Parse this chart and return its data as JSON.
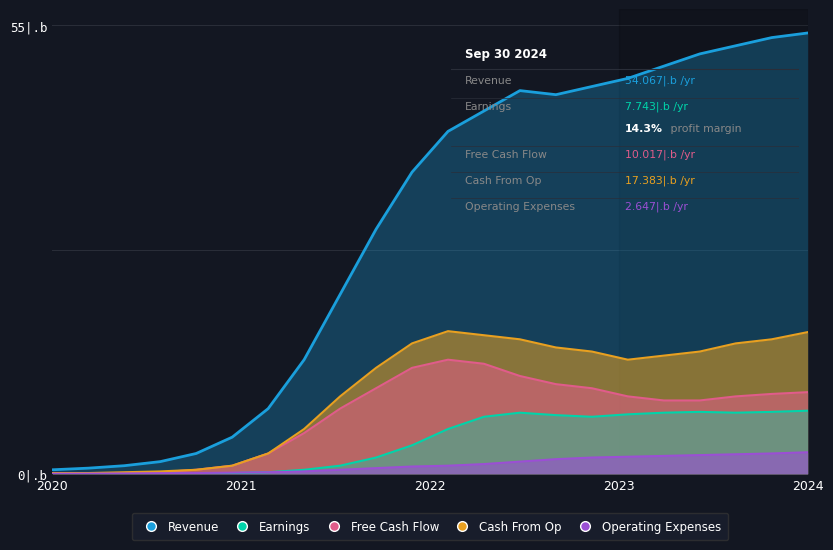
{
  "bg_color": "#131722",
  "plot_bg_color": "#131722",
  "grid_color": "#2a2e39",
  "box_bg": "#0a0a0a",
  "box_border": "#333333",
  "ylabel_top": "55|.b",
  "ylabel_bottom": "0|.b",
  "x_ticks": [
    "2020",
    "2021",
    "2022",
    "2023",
    "2024"
  ],
  "colors": {
    "revenue": "#1a9fdc",
    "earnings": "#00d4aa",
    "free_cash_flow": "#e05c8a",
    "cash_from_op": "#e8a020",
    "operating_expenses": "#9b4fd4"
  },
  "revenue": [
    0.5,
    0.7,
    1.0,
    1.5,
    2.5,
    4.5,
    8.0,
    14.0,
    22.0,
    30.0,
    37.0,
    42.0,
    44.5,
    47.0,
    46.5,
    47.5,
    48.5,
    50.0,
    51.5,
    52.5,
    53.5,
    54.067
  ],
  "earnings": [
    0.05,
    0.05,
    0.05,
    0.06,
    0.08,
    0.1,
    0.2,
    0.5,
    1.0,
    2.0,
    3.5,
    5.5,
    7.0,
    7.5,
    7.2,
    7.0,
    7.3,
    7.5,
    7.6,
    7.5,
    7.6,
    7.743
  ],
  "free_cash_flow": [
    0.05,
    0.05,
    0.1,
    0.2,
    0.5,
    1.0,
    2.5,
    5.0,
    8.0,
    10.5,
    13.0,
    14.0,
    13.5,
    12.0,
    11.0,
    10.5,
    9.5,
    9.0,
    9.0,
    9.5,
    9.8,
    10.017
  ],
  "cash_from_op": [
    0.1,
    0.1,
    0.2,
    0.3,
    0.5,
    1.0,
    2.5,
    5.5,
    9.5,
    13.0,
    16.0,
    17.5,
    17.0,
    16.5,
    15.5,
    15.0,
    14.0,
    14.5,
    15.0,
    16.0,
    16.5,
    17.383
  ],
  "operating_expenses": [
    0.02,
    0.03,
    0.05,
    0.08,
    0.1,
    0.15,
    0.2,
    0.3,
    0.5,
    0.7,
    0.9,
    1.0,
    1.2,
    1.5,
    1.8,
    2.0,
    2.1,
    2.2,
    2.3,
    2.4,
    2.5,
    2.647
  ],
  "n_points": 22,
  "ylim": [
    0,
    57
  ],
  "box_title": "Sep 30 2024",
  "box_rows": [
    {
      "label": "Revenue",
      "value": "54.067|.b /yr",
      "value_color": "#1a9fdc"
    },
    {
      "label": "Earnings",
      "value": "7.743|.b /yr",
      "value_color": "#00d4aa"
    },
    {
      "label": "",
      "value": "14.3% profit margin",
      "value_color": "#ffffff"
    },
    {
      "label": "Free Cash Flow",
      "value": "10.017|.b /yr",
      "value_color": "#e05c8a"
    },
    {
      "label": "Cash From Op",
      "value": "17.383|.b /yr",
      "value_color": "#e8a020"
    },
    {
      "label": "Operating Expenses",
      "value": "2.647|.b /yr",
      "value_color": "#9b4fd4"
    }
  ],
  "legend_entries": [
    {
      "label": "Revenue",
      "color": "#1a9fdc"
    },
    {
      "label": "Earnings",
      "color": "#00d4aa"
    },
    {
      "label": "Free Cash Flow",
      "color": "#e05c8a"
    },
    {
      "label": "Cash From Op",
      "color": "#e8a020"
    },
    {
      "label": "Operating Expenses",
      "color": "#9b4fd4"
    }
  ]
}
